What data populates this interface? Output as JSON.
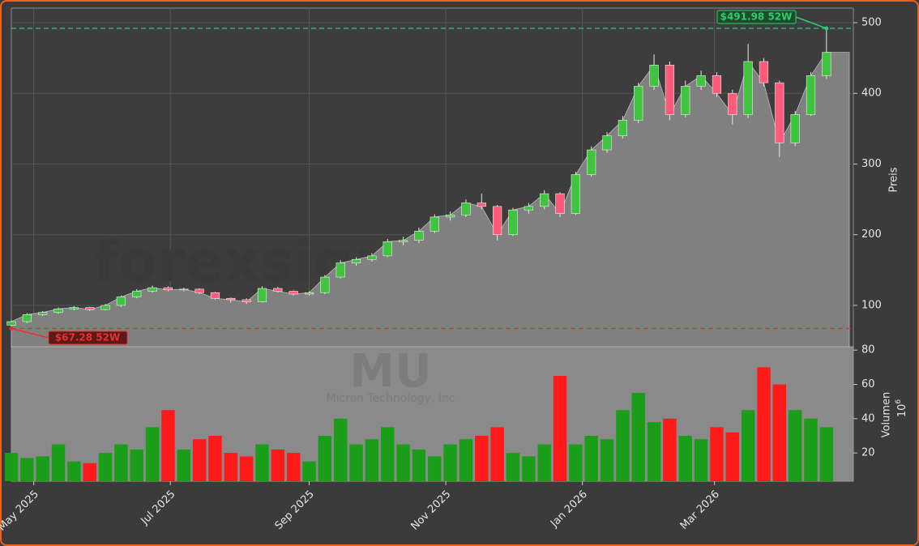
{
  "chart_data": {
    "type": "candlestick",
    "watermark": "forexsignale.trade",
    "symbol": "MU",
    "company": "Micron Technology, Inc",
    "ylabel": "Preis",
    "volume_label": "Volumen",
    "volume_unit_base": "10",
    "volume_unit_exponent": "6",
    "up_color": "#1a9e1a",
    "down_color": "#ff1a1a",
    "area_color": "#808080",
    "xlim": [
      0,
      376
    ],
    "xticks": [
      {
        "value": 10,
        "label": "May 2025"
      },
      {
        "value": 71,
        "label": "Jul 2025"
      },
      {
        "value": 133,
        "label": "Sep 2025"
      },
      {
        "value": 194,
        "label": "Nov 2025"
      },
      {
        "value": 255,
        "label": "Jan 2026"
      },
      {
        "value": 314,
        "label": "Mar 2026"
      }
    ],
    "ylim": [
      41.5,
      520.6
    ],
    "yticks": [
      100,
      200,
      300,
      400,
      500
    ],
    "volume_ylim": [
      3.5,
      82
    ],
    "volume_yticks": [
      20,
      40,
      60,
      80
    ],
    "grid": true,
    "x": [
      0,
      7,
      14,
      21,
      28,
      35,
      42,
      49,
      56,
      63,
      70,
      77,
      84,
      91,
      98,
      105,
      112,
      119,
      126,
      133,
      140,
      147,
      154,
      161,
      168,
      175,
      182,
      189,
      196,
      203,
      210,
      217,
      224,
      231,
      238,
      245,
      252,
      259,
      266,
      273,
      280,
      287,
      294,
      301,
      308,
      315,
      322,
      329,
      336,
      343,
      350,
      357,
      364
    ],
    "open": [
      72,
      77,
      87,
      90,
      95,
      97,
      94,
      100,
      112,
      120,
      125,
      122,
      123,
      118,
      110,
      108,
      105,
      124,
      120,
      116,
      118,
      140,
      160,
      165,
      170,
      190,
      192,
      205,
      225,
      228,
      245,
      240,
      200,
      235,
      240,
      258,
      230,
      285,
      320,
      340,
      362,
      410,
      440,
      370,
      410,
      425,
      400,
      370,
      445,
      415,
      330,
      370,
      425
    ],
    "close": [
      77,
      87,
      90,
      95,
      97,
      94,
      100,
      112,
      120,
      125,
      122,
      123,
      118,
      110,
      108,
      105,
      124,
      120,
      116,
      118,
      140,
      160,
      165,
      170,
      190,
      192,
      205,
      225,
      228,
      245,
      240,
      200,
      235,
      240,
      258,
      230,
      285,
      320,
      340,
      362,
      410,
      440,
      370,
      410,
      425,
      400,
      370,
      445,
      415,
      330,
      370,
      425,
      458
    ],
    "high": [
      79,
      89,
      92,
      97,
      99,
      98,
      102,
      114,
      123,
      128,
      127,
      125,
      124,
      119,
      111,
      110,
      127,
      126,
      121,
      120,
      143,
      164,
      168,
      174,
      194,
      197,
      210,
      229,
      233,
      250,
      258,
      242,
      238,
      245,
      263,
      260,
      289,
      325,
      345,
      368,
      415,
      455,
      445,
      418,
      432,
      430,
      405,
      470,
      450,
      418,
      375,
      430,
      491.98
    ],
    "low": [
      67.28,
      75,
      85,
      88,
      93,
      92,
      93,
      98,
      110,
      118,
      120,
      120,
      116,
      108,
      104,
      102,
      104,
      118,
      114,
      114,
      116,
      138,
      156,
      162,
      168,
      185,
      188,
      202,
      220,
      225,
      236,
      192,
      198,
      230,
      236,
      225,
      228,
      282,
      316,
      336,
      358,
      405,
      362,
      366,
      405,
      395,
      356,
      365,
      410,
      310,
      325,
      368,
      420
    ],
    "volume": [
      20,
      17,
      18,
      25,
      15,
      14,
      20,
      25,
      22,
      35,
      45,
      22,
      28,
      30,
      20,
      18,
      25,
      22,
      20,
      15,
      30,
      40,
      25,
      28,
      35,
      25,
      22,
      18,
      25,
      28,
      30,
      35,
      20,
      18,
      25,
      65,
      25,
      30,
      28,
      45,
      55,
      38,
      40,
      30,
      28,
      35,
      32,
      45,
      70,
      60,
      45,
      40,
      35
    ],
    "hlines": [
      {
        "value": 491.98,
        "label": "$491.98 52W",
        "color": "#2ecc71"
      },
      {
        "value": 67.28,
        "label": "$67.28 52W",
        "color": "#e83030"
      }
    ]
  }
}
